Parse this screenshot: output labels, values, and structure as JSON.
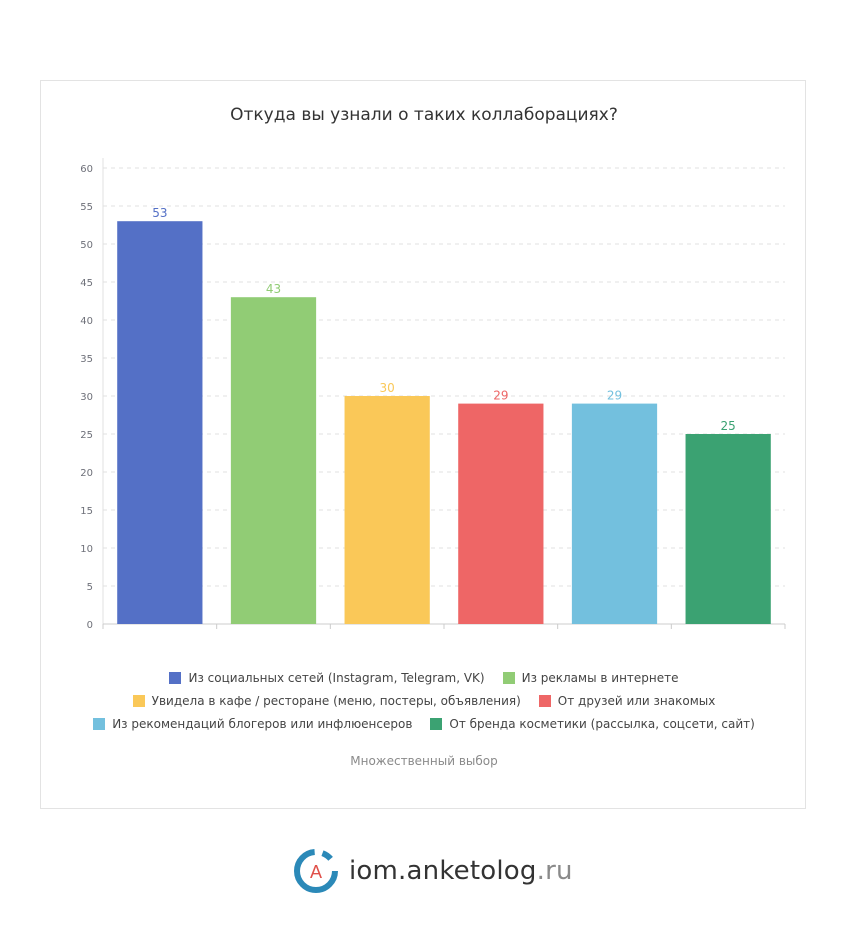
{
  "chart_data": {
    "type": "bar",
    "title": "Откуда вы узнали о таких коллаборациях?",
    "categories": [
      "Из социальных сетей (Instagram, Telegram, VK)",
      "Из рекламы в интернете",
      "Увидела в кафе / ресторане (меню, постеры, объявления)",
      "От друзей или знакомых",
      "Из рекомендаций блогеров или инфлюенсеров",
      "От бренда косметики (рассылка, соцсети, сайт)"
    ],
    "values": [
      53,
      43,
      30,
      29,
      29,
      25
    ],
    "colors": [
      "#5470c6",
      "#91cc75",
      "#fac858",
      "#ee6666",
      "#73c0de",
      "#3ba272"
    ],
    "ylim": [
      0,
      60
    ],
    "yticks": [
      0,
      5,
      10,
      15,
      20,
      25,
      30,
      35,
      40,
      45,
      50,
      55,
      60
    ],
    "grid": true,
    "legend_position": "bottom",
    "note": "Множественный выбор"
  },
  "brand": {
    "logo_letter": "A",
    "name": "iom.anketolog",
    "domain": ".ru"
  }
}
